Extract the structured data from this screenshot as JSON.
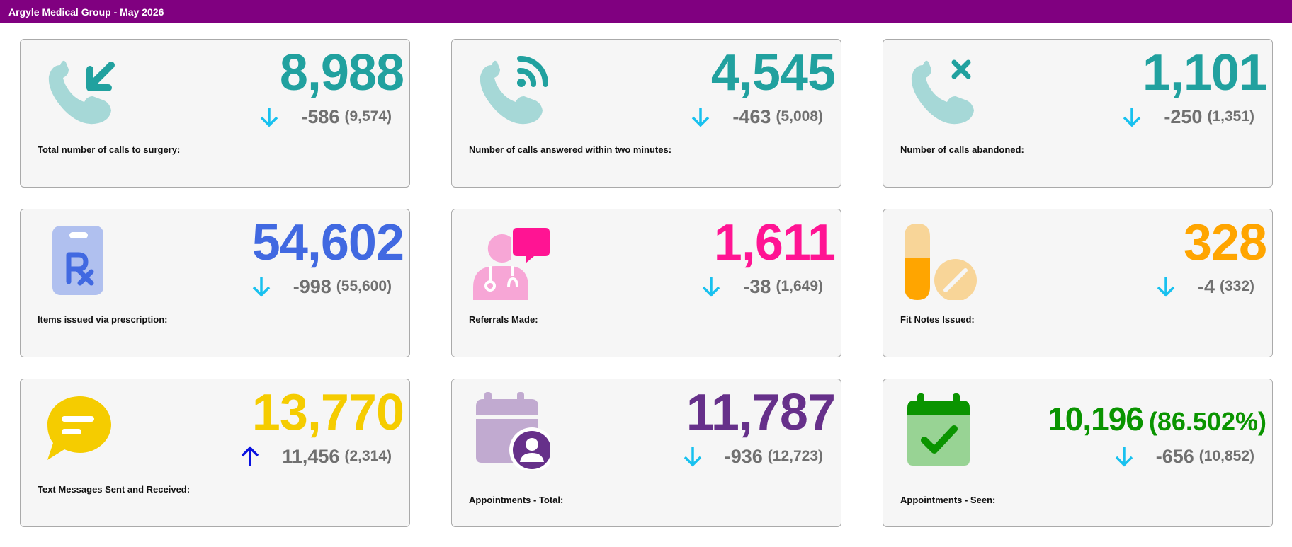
{
  "header": {
    "title": "Argyle Medical Group - May 2026"
  },
  "colors": {
    "header_bg": "#800080",
    "teal": "#21a19f",
    "blue": "#4169e1",
    "magenta": "#ff1493",
    "orange": "#ffa500",
    "yellow": "#f5cc00",
    "purple": "#66308a",
    "green": "#0a9400",
    "arrow_down": "#18c1ef",
    "arrow_up": "#0a12e0",
    "muted": "#707070"
  },
  "cards": [
    {
      "label": "Total number of calls to surgery:",
      "value": "8,988",
      "delta": "-586",
      "previous": "(9,574)",
      "trend": "down",
      "icon": "phone-incoming-icon"
    },
    {
      "label": "Number of calls answered within two minutes:",
      "value": "4,545",
      "delta": "-463",
      "previous": "(5,008)",
      "trend": "down",
      "icon": "phone-signal-icon"
    },
    {
      "label": "Number of calls abandoned:",
      "value": "1,101",
      "delta": "-250",
      "previous": "(1,351)",
      "trend": "down",
      "icon": "phone-missed-icon"
    },
    {
      "label": "Items issued via prescription:",
      "value": "54,602",
      "delta": "-998",
      "previous": "(55,600)",
      "trend": "down",
      "icon": "prescription-icon"
    },
    {
      "label": "Referrals Made:",
      "value": "1,611",
      "delta": "-38",
      "previous": "(1,649)",
      "trend": "down",
      "icon": "doctor-chat-icon"
    },
    {
      "label": "Fit Notes Issued:",
      "value": "328",
      "delta": "-4",
      "previous": "(332)",
      "trend": "down",
      "icon": "pills-icon"
    },
    {
      "label": "Text Messages Sent and Received:",
      "value": "13,770",
      "delta": "11,456",
      "previous": "(2,314)",
      "trend": "up",
      "icon": "chat-bubble-icon"
    },
    {
      "label": "Appointments - Total:",
      "value": "11,787",
      "delta": "-936",
      "previous": "(12,723)",
      "trend": "down",
      "icon": "calendar-user-icon"
    },
    {
      "label": "Appointments - Seen:",
      "value": "10,196",
      "value_pct": "(86.502%)",
      "delta": "-656",
      "previous": "(10,852)",
      "trend": "down",
      "icon": "calendar-check-icon"
    }
  ]
}
